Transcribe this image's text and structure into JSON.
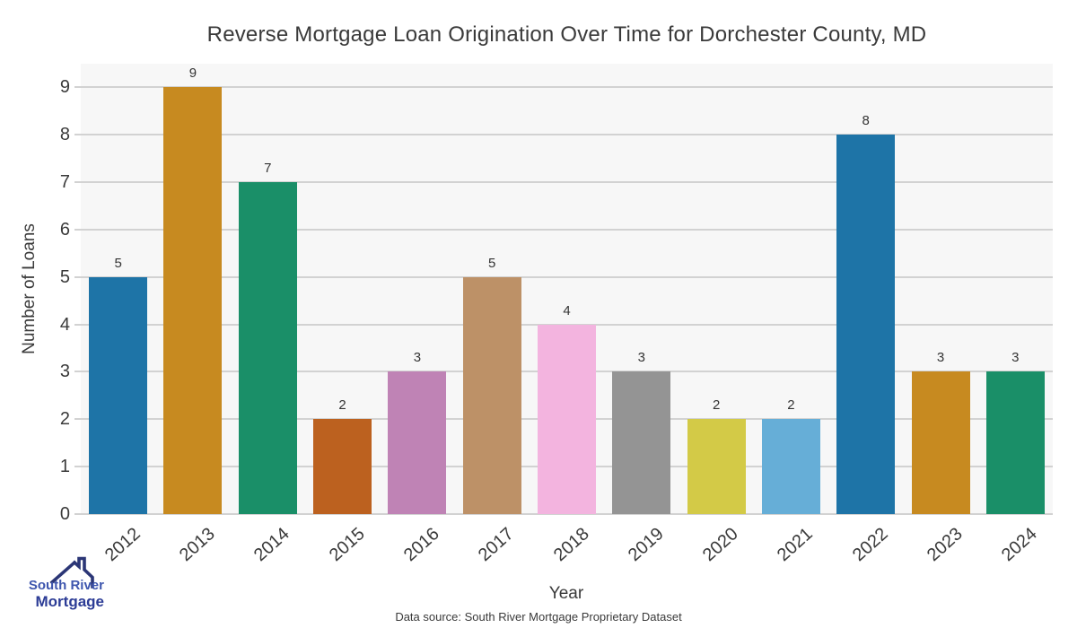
{
  "chart_data": {
    "type": "bar",
    "title": "Reverse Mortgage Loan Origination Over Time for Dorchester County, MD",
    "xlabel": "Year",
    "ylabel": "Number of Loans",
    "categories": [
      "2012",
      "2013",
      "2014",
      "2015",
      "2016",
      "2017",
      "2018",
      "2019",
      "2020",
      "2021",
      "2022",
      "2023",
      "2024"
    ],
    "values": [
      5,
      9,
      7,
      2,
      3,
      5,
      4,
      3,
      2,
      2,
      8,
      3,
      3
    ],
    "bar_colors": [
      "#1e74a7",
      "#c78a20",
      "#1a8f68",
      "#bc611f",
      "#bf83b5",
      "#bd9167",
      "#f3b4df",
      "#949494",
      "#d3ca47",
      "#66aed7",
      "#1e74a7",
      "#c78a20",
      "#1a8f68"
    ],
    "yticks": [
      0,
      1,
      2,
      3,
      4,
      5,
      6,
      7,
      8,
      9
    ],
    "ylim": [
      0,
      9.5
    ],
    "grid": "horizontal",
    "legend": "none",
    "plot_background": "#f7f7f7",
    "gridline_color": "#d2d2d2",
    "text_color": "#3a3a3a"
  },
  "footer": {
    "data_source": "Data source: South River Mortgage Proprietary Dataset"
  },
  "logo": {
    "line1": "South River",
    "line2": "Mortgage",
    "line1_color": "#3e56ae",
    "line2_color": "#2c3c96",
    "roof_color": "#2b3676"
  }
}
